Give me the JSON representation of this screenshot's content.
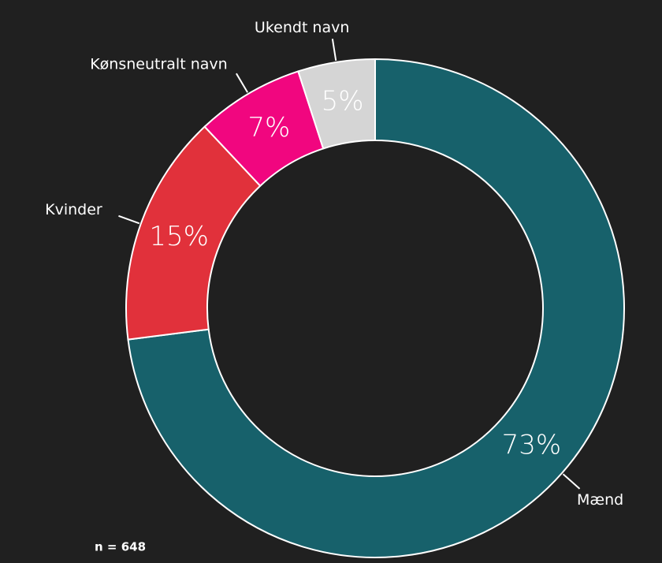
{
  "chart_data": {
    "type": "donut",
    "categories": [
      "Mænd",
      "Kvinder",
      "Kønsneutralt navn",
      "Ukendt navn"
    ],
    "values": [
      73,
      15,
      7,
      5
    ],
    "value_labels": [
      "73%",
      "15%",
      "7%",
      "5%"
    ],
    "colors": [
      "#17616b",
      "#e1313b",
      "#f1067f",
      "#d5d5d5"
    ],
    "annotation": "n = 648"
  }
}
